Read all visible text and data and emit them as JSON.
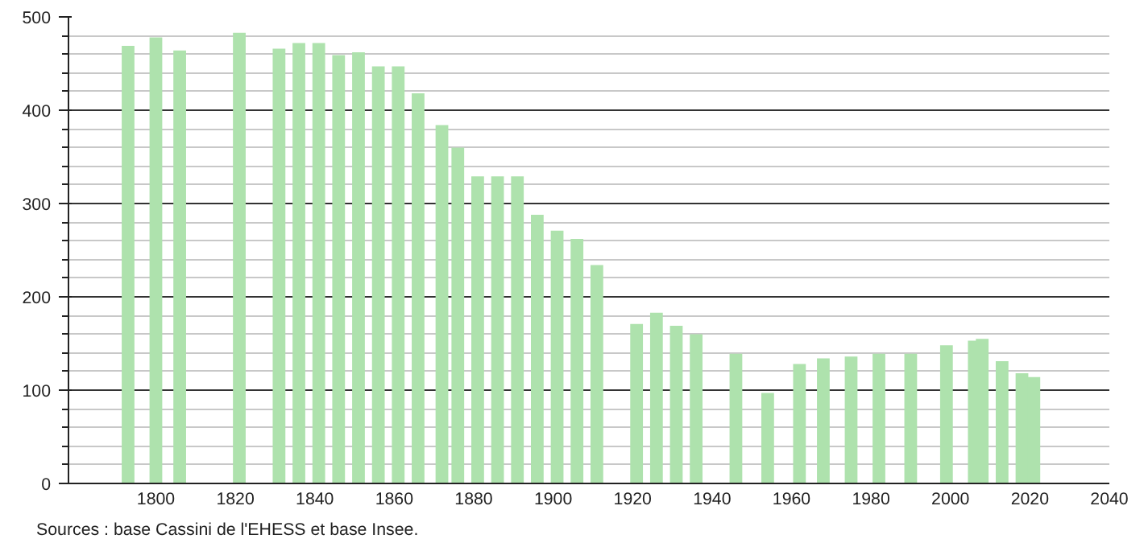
{
  "chart_data": {
    "type": "bar",
    "x": [
      1793,
      1800,
      1806,
      1821,
      1831,
      1836,
      1841,
      1846,
      1851,
      1856,
      1861,
      1866,
      1872,
      1876,
      1881,
      1886,
      1891,
      1896,
      1901,
      1906,
      1911,
      1921,
      1926,
      1931,
      1936,
      1946,
      1954,
      1962,
      1968,
      1975,
      1982,
      1990,
      1999,
      2006,
      2008,
      2013,
      2018,
      2021
    ],
    "values": [
      469,
      478,
      464,
      483,
      466,
      472,
      472,
      459,
      462,
      447,
      447,
      418,
      384,
      360,
      329,
      329,
      329,
      288,
      271,
      262,
      234,
      171,
      183,
      169,
      160,
      139,
      97,
      128,
      134,
      136,
      139,
      139,
      148,
      153,
      155,
      131,
      118,
      114
    ],
    "color": "#aee2ad",
    "xlim": [
      1778,
      2040
    ],
    "xticks": [
      1800,
      1820,
      1840,
      1860,
      1880,
      1900,
      1920,
      1940,
      1960,
      1980,
      2000,
      2020,
      2040
    ],
    "ylim": [
      0,
      500
    ],
    "yticks": [
      0,
      100,
      200,
      300,
      400,
      500
    ],
    "grid": "y",
    "annotations": [
      "Sources : base Cassini de l'EHESS et base Insee."
    ]
  }
}
